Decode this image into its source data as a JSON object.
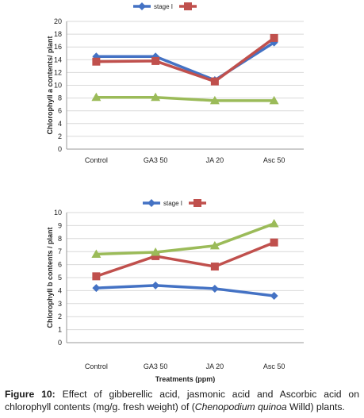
{
  "chart_data": [
    {
      "type": "line",
      "categories": [
        "Control",
        "GA3 50",
        "JA 20",
        "Asc 50"
      ],
      "ylabel": "Chlorophyll a contents/ plant",
      "xlabel": "",
      "ylim": [
        0,
        20
      ],
      "yticks": [
        0,
        2,
        4,
        6,
        8,
        10,
        12,
        14,
        16,
        18,
        20
      ],
      "legend": {
        "placement": "top",
        "entries": [
          "stage I",
          ""
        ]
      },
      "series": [
        {
          "name": "stage I",
          "color": "#4472c4",
          "marker": "diamond",
          "values": [
            14.5,
            14.5,
            10.8,
            16.7
          ]
        },
        {
          "color": "#c0504d",
          "marker": "square",
          "values": [
            13.7,
            13.8,
            10.6,
            17.4
          ]
        },
        {
          "color": "#9bbb59",
          "marker": "triangle",
          "values": [
            8.1,
            8.1,
            7.6,
            7.6
          ]
        }
      ]
    },
    {
      "type": "line",
      "categories": [
        "Control",
        "GA3 50",
        "JA 20",
        "Asc 50"
      ],
      "ylabel": "Chlorophyll b contents / plant",
      "xlabel": "Treatments (ppm)",
      "ylim": [
        0,
        10
      ],
      "yticks": [
        0,
        1,
        2,
        3,
        4,
        5,
        6,
        7,
        8,
        9,
        10
      ],
      "legend": {
        "placement": "top",
        "entries": [
          "stage I",
          ""
        ]
      },
      "series": [
        {
          "name": "stage I",
          "color": "#4472c4",
          "marker": "diamond",
          "values": [
            4.2,
            4.4,
            4.15,
            3.6
          ]
        },
        {
          "color": "#c0504d",
          "marker": "square",
          "values": [
            5.1,
            6.65,
            5.85,
            7.7
          ]
        },
        {
          "color": "#9bbb59",
          "marker": "triangle",
          "values": [
            6.8,
            6.95,
            7.45,
            9.15
          ]
        }
      ]
    }
  ],
  "caption": {
    "label": "Figure 10:",
    "text_before": " Effect of gibberellic acid, jasmonic acid and Ascorbic acid on chlorophyll contents (mg/g. fresh weight) of (",
    "species": "Chenopodium quinoa",
    "text_after": " Willd) plants."
  }
}
